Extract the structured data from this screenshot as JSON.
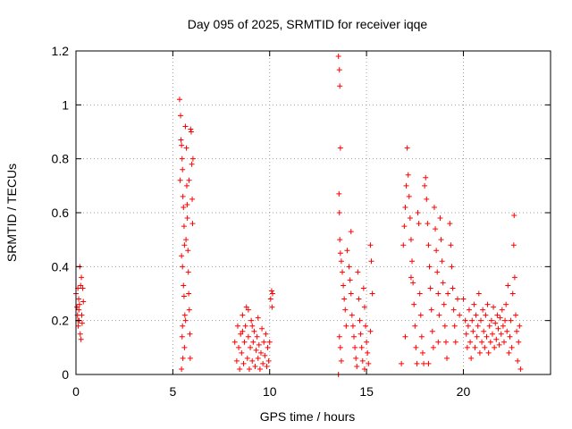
{
  "chart_data": {
    "type": "scatter",
    "title": "Day 095 of 2025, SRMTID for receiver iqqe",
    "xlabel": "GPS time / hours",
    "ylabel": "SRMTID / TECUs",
    "xlim": [
      0,
      24.5
    ],
    "ylim": [
      0,
      1.2
    ],
    "xticks": [
      0,
      5,
      10,
      15,
      20
    ],
    "xtick_labels": [
      "0",
      "5",
      "10",
      "15",
      "20"
    ],
    "yticks": [
      0,
      0.2,
      0.4,
      0.6,
      0.8,
      1.0,
      1.2
    ],
    "ytick_labels": [
      "0",
      "0.2",
      "0.4",
      "0.6",
      "0.8",
      "1",
      "1.2"
    ],
    "grid": true,
    "marker": "+",
    "color": "#ff0000",
    "series": [
      {
        "name": "SRMTID",
        "points": [
          [
            0.0,
            0.3
          ],
          [
            0.05,
            0.25
          ],
          [
            0.08,
            0.22
          ],
          [
            0.1,
            0.32
          ],
          [
            0.12,
            0.18
          ],
          [
            0.14,
            0.28
          ],
          [
            0.16,
            0.2
          ],
          [
            0.18,
            0.26
          ],
          [
            0.2,
            0.4
          ],
          [
            0.22,
            0.15
          ],
          [
            0.24,
            0.33
          ],
          [
            0.26,
            0.13
          ],
          [
            0.28,
            0.36
          ],
          [
            0.3,
            0.22
          ],
          [
            0.32,
            0.19
          ],
          [
            0.35,
            0.32
          ],
          [
            0.38,
            0.27
          ],
          [
            0.15,
            0.24
          ],
          [
            0.1,
            0.2
          ],
          [
            5.35,
            1.02
          ],
          [
            5.4,
            0.96
          ],
          [
            5.42,
            0.87
          ],
          [
            5.45,
            0.85
          ],
          [
            5.48,
            0.8
          ],
          [
            5.5,
            0.76
          ],
          [
            5.38,
            0.72
          ],
          [
            5.52,
            0.66
          ],
          [
            5.55,
            0.62
          ],
          [
            5.58,
            0.55
          ],
          [
            5.6,
            0.48
          ],
          [
            5.45,
            0.44
          ],
          [
            5.5,
            0.4
          ],
          [
            5.55,
            0.33
          ],
          [
            5.58,
            0.29
          ],
          [
            5.62,
            0.22
          ],
          [
            5.5,
            0.18
          ],
          [
            5.48,
            0.14
          ],
          [
            5.6,
            0.1
          ],
          [
            5.52,
            0.06
          ],
          [
            5.45,
            0.02
          ],
          [
            5.65,
            0.92
          ],
          [
            5.7,
            0.84
          ],
          [
            5.72,
            0.7
          ],
          [
            5.75,
            0.58
          ],
          [
            5.78,
            0.46
          ],
          [
            5.8,
            0.38
          ],
          [
            5.82,
            0.3
          ],
          [
            5.85,
            0.24
          ],
          [
            5.88,
            0.15
          ],
          [
            5.9,
            0.06
          ],
          [
            5.92,
            0.91
          ],
          [
            5.95,
            0.9
          ],
          [
            5.98,
            0.78
          ],
          [
            6.0,
            0.65
          ],
          [
            6.02,
            0.56
          ],
          [
            6.04,
            0.8
          ],
          [
            5.68,
            0.5
          ],
          [
            5.74,
            0.63
          ],
          [
            5.84,
            0.72
          ],
          [
            5.66,
            0.2
          ],
          [
            8.2,
            0.12
          ],
          [
            8.3,
            0.05
          ],
          [
            8.35,
            0.18
          ],
          [
            8.4,
            0.1
          ],
          [
            8.45,
            0.02
          ],
          [
            8.5,
            0.15
          ],
          [
            8.55,
            0.08
          ],
          [
            8.6,
            0.22
          ],
          [
            8.65,
            0.04
          ],
          [
            8.7,
            0.12
          ],
          [
            8.75,
            0.18
          ],
          [
            8.8,
            0.25
          ],
          [
            8.85,
            0.06
          ],
          [
            8.9,
            0.14
          ],
          [
            8.95,
            0.02
          ],
          [
            9.0,
            0.1
          ],
          [
            9.05,
            0.2
          ],
          [
            9.1,
            0.05
          ],
          [
            9.15,
            0.12
          ],
          [
            9.2,
            0.16
          ],
          [
            9.25,
            0.03
          ],
          [
            9.3,
            0.09
          ],
          [
            9.35,
            0.14
          ],
          [
            9.4,
            0.06
          ],
          [
            9.45,
            0.11
          ],
          [
            9.5,
            0.02
          ],
          [
            9.55,
            0.08
          ],
          [
            9.6,
            0.17
          ],
          [
            9.65,
            0.04
          ],
          [
            9.7,
            0.12
          ],
          [
            9.75,
            0.07
          ],
          [
            9.8,
            0.15
          ],
          [
            9.85,
            0.03
          ],
          [
            9.9,
            0.1
          ],
          [
            9.95,
            0.05
          ],
          [
            10.0,
            0.12
          ],
          [
            10.05,
            0.28
          ],
          [
            10.1,
            0.31
          ],
          [
            10.12,
            0.25
          ],
          [
            10.15,
            0.3
          ],
          [
            8.9,
            0.24
          ],
          [
            9.1,
            0.18
          ],
          [
            9.4,
            0.21
          ],
          [
            8.6,
            0.16
          ],
          [
            13.55,
            1.18
          ],
          [
            13.6,
            1.13
          ],
          [
            13.62,
            1.07
          ],
          [
            13.65,
            0.84
          ],
          [
            13.58,
            0.67
          ],
          [
            13.6,
            0.6
          ],
          [
            13.62,
            0.5
          ],
          [
            13.65,
            0.45
          ],
          [
            13.7,
            0.42
          ],
          [
            13.75,
            0.38
          ],
          [
            13.8,
            0.33
          ],
          [
            13.85,
            0.28
          ],
          [
            13.9,
            0.24
          ],
          [
            13.95,
            0.18
          ],
          [
            13.6,
            0.14
          ],
          [
            13.65,
            0.1
          ],
          [
            13.7,
            0.05
          ],
          [
            13.55,
            0.0
          ],
          [
            14.0,
            0.46
          ],
          [
            14.1,
            0.4
          ],
          [
            14.15,
            0.35
          ],
          [
            14.2,
            0.3
          ],
          [
            14.25,
            0.22
          ],
          [
            14.3,
            0.18
          ],
          [
            14.35,
            0.14
          ],
          [
            14.4,
            0.1
          ],
          [
            14.45,
            0.06
          ],
          [
            14.5,
            0.03
          ],
          [
            14.55,
            0.38
          ],
          [
            14.6,
            0.28
          ],
          [
            14.65,
            0.2
          ],
          [
            14.7,
            0.15
          ],
          [
            14.75,
            0.1
          ],
          [
            14.8,
            0.05
          ],
          [
            14.85,
            0.32
          ],
          [
            14.9,
            0.25
          ],
          [
            14.95,
            0.18
          ],
          [
            15.0,
            0.12
          ],
          [
            15.05,
            0.08
          ],
          [
            15.1,
            0.04
          ],
          [
            15.2,
            0.48
          ],
          [
            15.25,
            0.42
          ],
          [
            15.3,
            0.3
          ],
          [
            14.2,
            0.53
          ],
          [
            14.9,
            0.02
          ],
          [
            15.2,
            0.16
          ],
          [
            16.8,
            0.04
          ],
          [
            16.9,
            0.48
          ],
          [
            16.95,
            0.55
          ],
          [
            17.0,
            0.62
          ],
          [
            17.05,
            0.7
          ],
          [
            17.1,
            0.84
          ],
          [
            17.15,
            0.74
          ],
          [
            17.2,
            0.66
          ],
          [
            17.25,
            0.58
          ],
          [
            17.3,
            0.5
          ],
          [
            17.35,
            0.42
          ],
          [
            17.4,
            0.34
          ],
          [
            17.45,
            0.26
          ],
          [
            17.5,
            0.18
          ],
          [
            17.55,
            0.1
          ],
          [
            17.6,
            0.04
          ],
          [
            17.65,
            0.6
          ],
          [
            17.7,
            0.56
          ],
          [
            17.75,
            0.3
          ],
          [
            17.8,
            0.22
          ],
          [
            17.85,
            0.14
          ],
          [
            17.9,
            0.08
          ],
          [
            17.95,
            0.04
          ],
          [
            18.0,
            0.7
          ],
          [
            18.05,
            0.73
          ],
          [
            18.1,
            0.65
          ],
          [
            18.15,
            0.56
          ],
          [
            18.2,
            0.48
          ],
          [
            18.25,
            0.4
          ],
          [
            18.3,
            0.32
          ],
          [
            18.35,
            0.24
          ],
          [
            18.4,
            0.16
          ],
          [
            18.45,
            0.1
          ],
          [
            18.5,
            0.62
          ],
          [
            18.55,
            0.54
          ],
          [
            18.6,
            0.46
          ],
          [
            18.65,
            0.38
          ],
          [
            18.7,
            0.3
          ],
          [
            18.75,
            0.22
          ],
          [
            18.8,
            0.58
          ],
          [
            18.85,
            0.5
          ],
          [
            18.9,
            0.42
          ],
          [
            18.95,
            0.34
          ],
          [
            19.0,
            0.26
          ],
          [
            19.05,
            0.18
          ],
          [
            19.1,
            0.12
          ],
          [
            19.15,
            0.06
          ],
          [
            19.2,
            0.3
          ],
          [
            19.3,
            0.56
          ],
          [
            19.35,
            0.48
          ],
          [
            19.4,
            0.4
          ],
          [
            19.45,
            0.32
          ],
          [
            19.5,
            0.24
          ],
          [
            19.55,
            0.18
          ],
          [
            19.6,
            0.12
          ],
          [
            19.7,
            0.28
          ],
          [
            19.8,
            0.22
          ],
          [
            17.0,
            0.14
          ],
          [
            17.3,
            0.36
          ],
          [
            18.2,
            0.04
          ],
          [
            18.7,
            0.12
          ],
          [
            20.0,
            0.28
          ],
          [
            20.1,
            0.2
          ],
          [
            20.15,
            0.15
          ],
          [
            20.2,
            0.1
          ],
          [
            20.25,
            0.18
          ],
          [
            20.3,
            0.24
          ],
          [
            20.35,
            0.12
          ],
          [
            20.4,
            0.06
          ],
          [
            20.45,
            0.2
          ],
          [
            20.5,
            0.16
          ],
          [
            20.55,
            0.26
          ],
          [
            20.6,
            0.1
          ],
          [
            20.65,
            0.22
          ],
          [
            20.7,
            0.14
          ],
          [
            20.75,
            0.18
          ],
          [
            20.8,
            0.3
          ],
          [
            20.85,
            0.08
          ],
          [
            20.9,
            0.2
          ],
          [
            20.95,
            0.12
          ],
          [
            21.0,
            0.24
          ],
          [
            21.05,
            0.16
          ],
          [
            21.1,
            0.1
          ],
          [
            21.15,
            0.22
          ],
          [
            21.2,
            0.14
          ],
          [
            21.25,
            0.26
          ],
          [
            21.3,
            0.08
          ],
          [
            21.35,
            0.18
          ],
          [
            21.4,
            0.12
          ],
          [
            21.45,
            0.2
          ],
          [
            21.5,
            0.15
          ],
          [
            21.55,
            0.25
          ],
          [
            21.6,
            0.1
          ],
          [
            21.65,
            0.19
          ],
          [
            21.7,
            0.13
          ],
          [
            21.75,
            0.22
          ],
          [
            21.8,
            0.17
          ],
          [
            21.85,
            0.11
          ],
          [
            21.9,
            0.21
          ],
          [
            21.95,
            0.15
          ],
          [
            22.0,
            0.24
          ],
          [
            22.05,
            0.18
          ],
          [
            22.1,
            0.12
          ],
          [
            22.15,
            0.2
          ],
          [
            22.2,
            0.26
          ],
          [
            22.25,
            0.16
          ],
          [
            22.3,
            0.33
          ],
          [
            22.35,
            0.08
          ],
          [
            22.4,
            0.14
          ],
          [
            22.45,
            0.2
          ],
          [
            22.5,
            0.1
          ],
          [
            22.55,
            0.3
          ],
          [
            22.6,
            0.48
          ],
          [
            22.62,
            0.59
          ],
          [
            22.65,
            0.36
          ],
          [
            22.7,
            0.22
          ],
          [
            22.75,
            0.16
          ],
          [
            22.8,
            0.05
          ],
          [
            22.85,
            0.12
          ],
          [
            22.9,
            0.18
          ],
          [
            22.95,
            0.02
          ]
        ]
      }
    ]
  }
}
